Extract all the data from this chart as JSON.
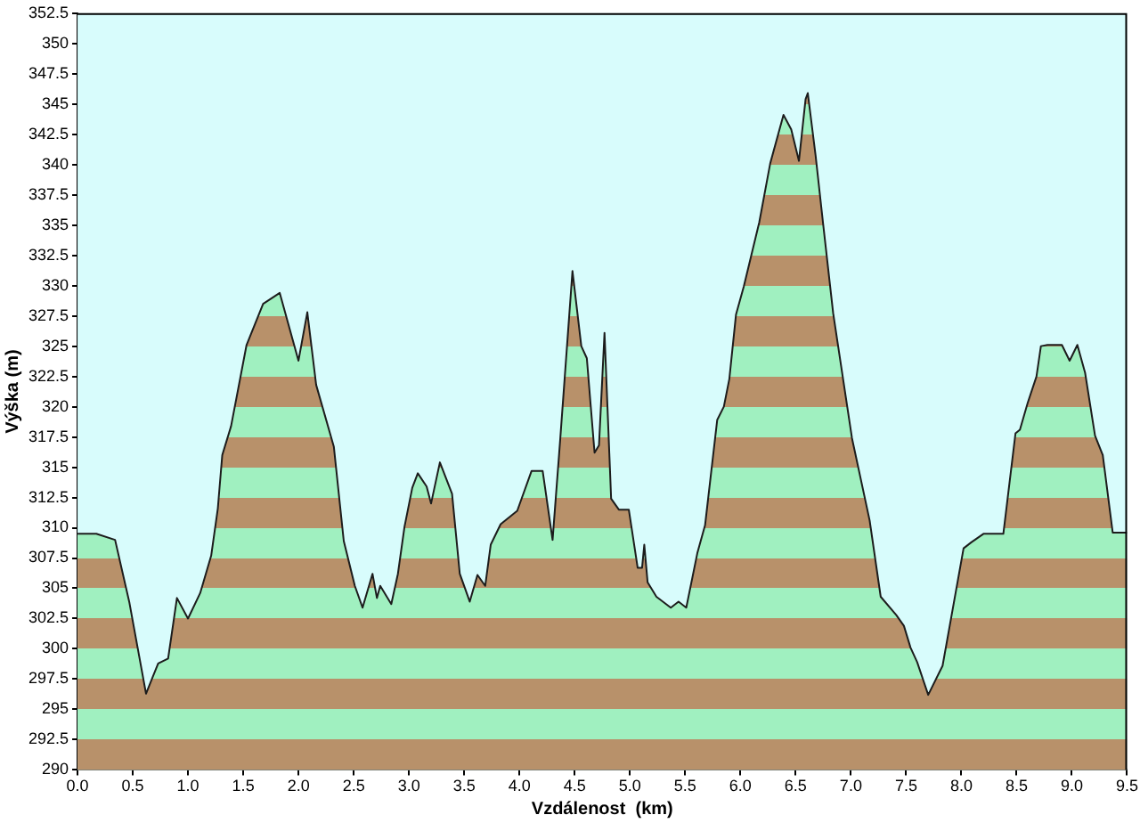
{
  "chart_data": {
    "type": "area",
    "xlabel": "Vzdálenost  (km)",
    "ylabel": "Výška (m)",
    "x": [
      0,
      0.17,
      0.34,
      0.47,
      0.62,
      0.73,
      0.82,
      0.9,
      1.0,
      1.11,
      1.21,
      1.27,
      1.31,
      1.39,
      1.53,
      1.68,
      1.83,
      2.0,
      2.08,
      2.16,
      2.32,
      2.41,
      2.51,
      2.58,
      2.67,
      2.71,
      2.74,
      2.84,
      2.9,
      2.96,
      3.03,
      3.08,
      3.16,
      3.2,
      3.28,
      3.39,
      3.46,
      3.55,
      3.62,
      3.69,
      3.74,
      3.83,
      3.98,
      4.11,
      4.21,
      4.3,
      4.37,
      4.48,
      4.56,
      4.61,
      4.68,
      4.72,
      4.77,
      4.83,
      4.9,
      4.99,
      5.07,
      5.11,
      5.13,
      5.16,
      5.24,
      5.37,
      5.44,
      5.51,
      5.61,
      5.68,
      5.79,
      5.85,
      5.9,
      5.96,
      6.03,
      6.17,
      6.27,
      6.39,
      6.46,
      6.53,
      6.59,
      6.61,
      6.68,
      6.75,
      6.84,
      7.01,
      7.17,
      7.27,
      7.41,
      7.48,
      7.54,
      7.6,
      7.7,
      7.83,
      8.02,
      8.09,
      8.2,
      8.38,
      8.49,
      8.53,
      8.6,
      8.68,
      8.72,
      8.78,
      8.91,
      8.98,
      9.05,
      9.12,
      9.21,
      9.28,
      9.37,
      9.5
    ],
    "series": [
      {
        "color": "#a0f0c0",
        "values": [
          309.5,
          309.5,
          309.0,
          303.8,
          296.3,
          298.8,
          299.2,
          304.2,
          302.5,
          304.6,
          307.7,
          311.6,
          316.0,
          318.4,
          325.1,
          328.5,
          329.4,
          323.8,
          327.8,
          321.8,
          316.7,
          308.9,
          305.2,
          303.4,
          306.2,
          304.2,
          305.2,
          303.7,
          306.2,
          310.1,
          313.3,
          314.5,
          313.4,
          312.0,
          315.4,
          312.8,
          306.2,
          303.9,
          306.1,
          305.2,
          308.6,
          310.3,
          311.4,
          314.7,
          314.7,
          309.0,
          317.4,
          331.2,
          325.0,
          324.0,
          316.2,
          316.8,
          326.1,
          312.4,
          311.5,
          311.5,
          306.7,
          306.7,
          308.6,
          305.5,
          304.3,
          303.4,
          303.9,
          303.4,
          307.9,
          310.2,
          318.9,
          320.0,
          322.3,
          327.6,
          329.9,
          335.2,
          340.1,
          344.1,
          342.9,
          340.3,
          345.4,
          345.9,
          340.8,
          335.0,
          327.7,
          317.4,
          310.6,
          304.3,
          302.8,
          301.9,
          300.1,
          298.9,
          296.2,
          298.6,
          308.3,
          308.8,
          309.5,
          309.5,
          317.8,
          318.1,
          320.3,
          322.5,
          325.0,
          325.1,
          325.1,
          323.8,
          325.1,
          322.8,
          317.6,
          316.0,
          309.6,
          309.6
        ]
      }
    ],
    "xlim": [
      0,
      9.5
    ],
    "ylim": [
      290,
      352.5
    ],
    "xticks": [
      {
        "value": 0,
        "label": "0.0"
      },
      0.5,
      {
        "value": 1,
        "label": "1.0"
      },
      1.5,
      {
        "value": 2,
        "label": "2.0"
      },
      2.5,
      {
        "value": 3,
        "label": "3.0"
      },
      3.5,
      {
        "value": 4,
        "label": "4.0"
      },
      4.5,
      {
        "value": 5,
        "label": "5.0"
      },
      5.5,
      {
        "value": 6,
        "label": "6.0"
      },
      6.5,
      {
        "value": 7,
        "label": "7.0"
      },
      7.5,
      {
        "value": 8,
        "label": "8.0"
      },
      8.5,
      {
        "value": 9,
        "label": "9.0"
      },
      9.5
    ],
    "yticks": [
      290,
      292.5,
      295,
      297.5,
      300,
      302.5,
      305,
      307.5,
      310,
      312.5,
      315,
      317.5,
      320,
      322.5,
      325,
      327.5,
      330,
      332.5,
      335,
      337.5,
      340,
      342.5,
      345,
      347.5,
      350,
      352.5
    ]
  }
}
